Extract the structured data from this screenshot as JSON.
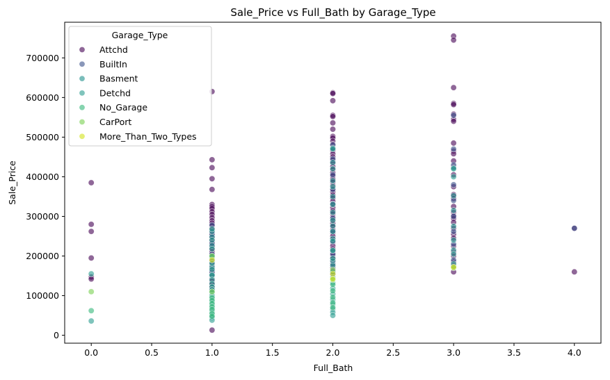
{
  "chart_data": {
    "type": "scatter",
    "title": "Sale_Price vs Full_Bath by Garage_Type",
    "xlabel": "Full_Bath",
    "ylabel": "Sale_Price",
    "xlim": [
      -0.22,
      4.22
    ],
    "ylim": [
      -20000,
      790000
    ],
    "xticks": [
      0.0,
      0.5,
      1.0,
      1.5,
      2.0,
      2.5,
      3.0,
      3.5,
      4.0
    ],
    "xtick_labels": [
      "0.0",
      "0.5",
      "1.0",
      "1.5",
      "2.0",
      "2.5",
      "3.0",
      "3.5",
      "4.0"
    ],
    "yticks": [
      0,
      100000,
      200000,
      300000,
      400000,
      500000,
      600000,
      700000
    ],
    "ytick_labels": [
      "0",
      "100000",
      "200000",
      "300000",
      "400000",
      "500000",
      "600000",
      "700000"
    ],
    "grid": false,
    "legend": {
      "title": "Garage_Type",
      "placement": "top-left"
    },
    "series": [
      {
        "name": "Attchd",
        "color": "#440154",
        "points": [
          [
            0,
            385000
          ],
          [
            0,
            280000
          ],
          [
            0,
            262000
          ],
          [
            0,
            195000
          ],
          [
            0,
            147000
          ],
          [
            0,
            142000
          ],
          [
            1,
            615000
          ],
          [
            1,
            443000
          ],
          [
            1,
            423000
          ],
          [
            1,
            395000
          ],
          [
            1,
            368000
          ],
          [
            1,
            330000
          ],
          [
            1,
            325000
          ],
          [
            1,
            320000
          ],
          [
            1,
            312000
          ],
          [
            1,
            305000
          ],
          [
            1,
            297000
          ],
          [
            1,
            289000
          ],
          [
            1,
            283000
          ],
          [
            1,
            276000
          ],
          [
            1,
            270000
          ],
          [
            1,
            265000
          ],
          [
            1,
            258000
          ],
          [
            1,
            252000
          ],
          [
            1,
            246000
          ],
          [
            1,
            240000
          ],
          [
            1,
            234000
          ],
          [
            1,
            228000
          ],
          [
            1,
            222000
          ],
          [
            1,
            216000
          ],
          [
            1,
            210000
          ],
          [
            1,
            204000
          ],
          [
            1,
            198000
          ],
          [
            1,
            192000
          ],
          [
            1,
            186000
          ],
          [
            1,
            180000
          ],
          [
            1,
            174000
          ],
          [
            1,
            168000
          ],
          [
            1,
            162000
          ],
          [
            1,
            156000
          ],
          [
            1,
            150000
          ],
          [
            1,
            143000
          ],
          [
            1,
            136000
          ],
          [
            1,
            129000
          ],
          [
            1,
            122000
          ],
          [
            1,
            115000
          ],
          [
            1,
            13000
          ],
          [
            2,
            612000
          ],
          [
            2,
            610000
          ],
          [
            2,
            592000
          ],
          [
            2,
            555000
          ],
          [
            2,
            552000
          ],
          [
            2,
            536000
          ],
          [
            2,
            520000
          ],
          [
            2,
            502000
          ],
          [
            2,
            498000
          ],
          [
            2,
            490000
          ],
          [
            2,
            482000
          ],
          [
            2,
            474000
          ],
          [
            2,
            466000
          ],
          [
            2,
            458000
          ],
          [
            2,
            450000
          ],
          [
            2,
            442000
          ],
          [
            2,
            434000
          ],
          [
            2,
            426000
          ],
          [
            2,
            418000
          ],
          [
            2,
            410000
          ],
          [
            2,
            402000
          ],
          [
            2,
            394000
          ],
          [
            2,
            386000
          ],
          [
            2,
            378000
          ],
          [
            2,
            370000
          ],
          [
            2,
            362000
          ],
          [
            2,
            354000
          ],
          [
            2,
            346000
          ],
          [
            2,
            338000
          ],
          [
            2,
            330000
          ],
          [
            2,
            322000
          ],
          [
            2,
            314000
          ],
          [
            2,
            306000
          ],
          [
            2,
            298000
          ],
          [
            2,
            290000
          ],
          [
            2,
            282000
          ],
          [
            2,
            274000
          ],
          [
            2,
            266000
          ],
          [
            2,
            258000
          ],
          [
            2,
            250000
          ],
          [
            2,
            242000
          ],
          [
            2,
            234000
          ],
          [
            2,
            226000
          ],
          [
            2,
            218000
          ],
          [
            2,
            210000
          ],
          [
            2,
            202000
          ],
          [
            2,
            194000
          ],
          [
            2,
            186000
          ],
          [
            2,
            178000
          ],
          [
            2,
            170000
          ],
          [
            2,
            162000
          ],
          [
            2,
            154000
          ],
          [
            3,
            755000
          ],
          [
            3,
            745000
          ],
          [
            3,
            625000
          ],
          [
            3,
            585000
          ],
          [
            3,
            582000
          ],
          [
            3,
            558000
          ],
          [
            3,
            545000
          ],
          [
            3,
            540000
          ],
          [
            3,
            485000
          ],
          [
            3,
            465000
          ],
          [
            3,
            458000
          ],
          [
            3,
            440000
          ],
          [
            3,
            425000
          ],
          [
            3,
            405000
          ],
          [
            3,
            375000
          ],
          [
            3,
            355000
          ],
          [
            3,
            345000
          ],
          [
            3,
            325000
          ],
          [
            3,
            310000
          ],
          [
            3,
            302000
          ],
          [
            3,
            295000
          ],
          [
            3,
            285000
          ],
          [
            3,
            270000
          ],
          [
            3,
            255000
          ],
          [
            3,
            245000
          ],
          [
            3,
            225000
          ],
          [
            3,
            210000
          ],
          [
            3,
            200000
          ],
          [
            3,
            185000
          ],
          [
            3,
            175000
          ],
          [
            3,
            160000
          ],
          [
            4,
            270000
          ],
          [
            4,
            160000
          ]
        ]
      },
      {
        "name": "BuiltIn",
        "color": "#3b528b",
        "points": [
          [
            1,
            278000
          ],
          [
            1,
            255000
          ],
          [
            1,
            232000
          ],
          [
            1,
            205000
          ],
          [
            1,
            178000
          ],
          [
            1,
            160000
          ],
          [
            2,
            480000
          ],
          [
            2,
            445000
          ],
          [
            2,
            405000
          ],
          [
            2,
            368000
          ],
          [
            2,
            332000
          ],
          [
            2,
            295000
          ],
          [
            2,
            262000
          ],
          [
            2,
            236000
          ],
          [
            2,
            205000
          ],
          [
            2,
            180000
          ],
          [
            3,
            555000
          ],
          [
            3,
            470000
          ],
          [
            3,
            430000
          ],
          [
            3,
            380000
          ],
          [
            3,
            340000
          ],
          [
            3,
            300000
          ],
          [
            3,
            262000
          ],
          [
            3,
            230000
          ],
          [
            3,
            190000
          ],
          [
            4,
            270000
          ]
        ]
      },
      {
        "name": "Basment",
        "color": "#21918c",
        "points": [
          [
            1,
            262000
          ],
          [
            1,
            248000
          ],
          [
            1,
            226000
          ],
          [
            1,
            196000
          ],
          [
            1,
            172000
          ],
          [
            1,
            150000
          ],
          [
            2,
            472000
          ],
          [
            2,
            436000
          ],
          [
            2,
            390000
          ],
          [
            2,
            350000
          ],
          [
            2,
            310000
          ],
          [
            2,
            276000
          ],
          [
            2,
            244000
          ],
          [
            2,
            214000
          ],
          [
            2,
            188000
          ],
          [
            3,
            422000
          ],
          [
            3,
            352000
          ],
          [
            3,
            315000
          ],
          [
            3,
            275000
          ],
          [
            3,
            240000
          ],
          [
            3,
            215000
          ]
        ]
      },
      {
        "name": "Detchd",
        "color": "#2a9d8f",
        "points": [
          [
            0,
            155000
          ],
          [
            0,
            36000
          ],
          [
            1,
            268000
          ],
          [
            1,
            240000
          ],
          [
            1,
            218000
          ],
          [
            1,
            200000
          ],
          [
            1,
            182000
          ],
          [
            1,
            166000
          ],
          [
            1,
            152000
          ],
          [
            1,
            140000
          ],
          [
            1,
            130000
          ],
          [
            1,
            122000
          ],
          [
            1,
            115000
          ],
          [
            1,
            108000
          ],
          [
            1,
            100000
          ],
          [
            1,
            92000
          ],
          [
            1,
            84000
          ],
          [
            1,
            76000
          ],
          [
            1,
            68000
          ],
          [
            1,
            60000
          ],
          [
            1,
            52000
          ],
          [
            1,
            45000
          ],
          [
            1,
            38000
          ],
          [
            2,
            470000
          ],
          [
            2,
            420000
          ],
          [
            2,
            375000
          ],
          [
            2,
            330000
          ],
          [
            2,
            290000
          ],
          [
            2,
            262000
          ],
          [
            2,
            238000
          ],
          [
            2,
            214000
          ],
          [
            2,
            194000
          ],
          [
            2,
            176000
          ],
          [
            2,
            160000
          ],
          [
            2,
            146000
          ],
          [
            2,
            132000
          ],
          [
            2,
            118000
          ],
          [
            2,
            104000
          ],
          [
            2,
            90000
          ],
          [
            2,
            78000
          ],
          [
            2,
            66000
          ],
          [
            2,
            58000
          ],
          [
            2,
            50000
          ],
          [
            3,
            420000
          ],
          [
            3,
            400000
          ],
          [
            3,
            205000
          ],
          [
            3,
            180000
          ]
        ]
      },
      {
        "name": "No_Garage",
        "color": "#35b779",
        "points": [
          [
            0,
            62000
          ],
          [
            1,
            95000
          ],
          [
            1,
            88000
          ],
          [
            1,
            80000
          ],
          [
            1,
            72000
          ],
          [
            1,
            65000
          ],
          [
            1,
            55000
          ],
          [
            1,
            48000
          ],
          [
            2,
            128000
          ],
          [
            2,
            112000
          ],
          [
            2,
            96000
          ],
          [
            2,
            82000
          ],
          [
            2,
            70000
          ]
        ]
      },
      {
        "name": "CarPort",
        "color": "#7ad151",
        "points": [
          [
            0,
            110000
          ],
          [
            1,
            200000
          ],
          [
            1,
            110000
          ],
          [
            2,
            165000
          ],
          [
            2,
            140000
          ],
          [
            3,
            170000
          ]
        ]
      },
      {
        "name": "More_Than_Two_Types",
        "color": "#d2e21b",
        "points": [
          [
            1,
            190000
          ],
          [
            2,
            155000
          ],
          [
            2,
            142000
          ],
          [
            3,
            172000
          ]
        ]
      }
    ]
  }
}
